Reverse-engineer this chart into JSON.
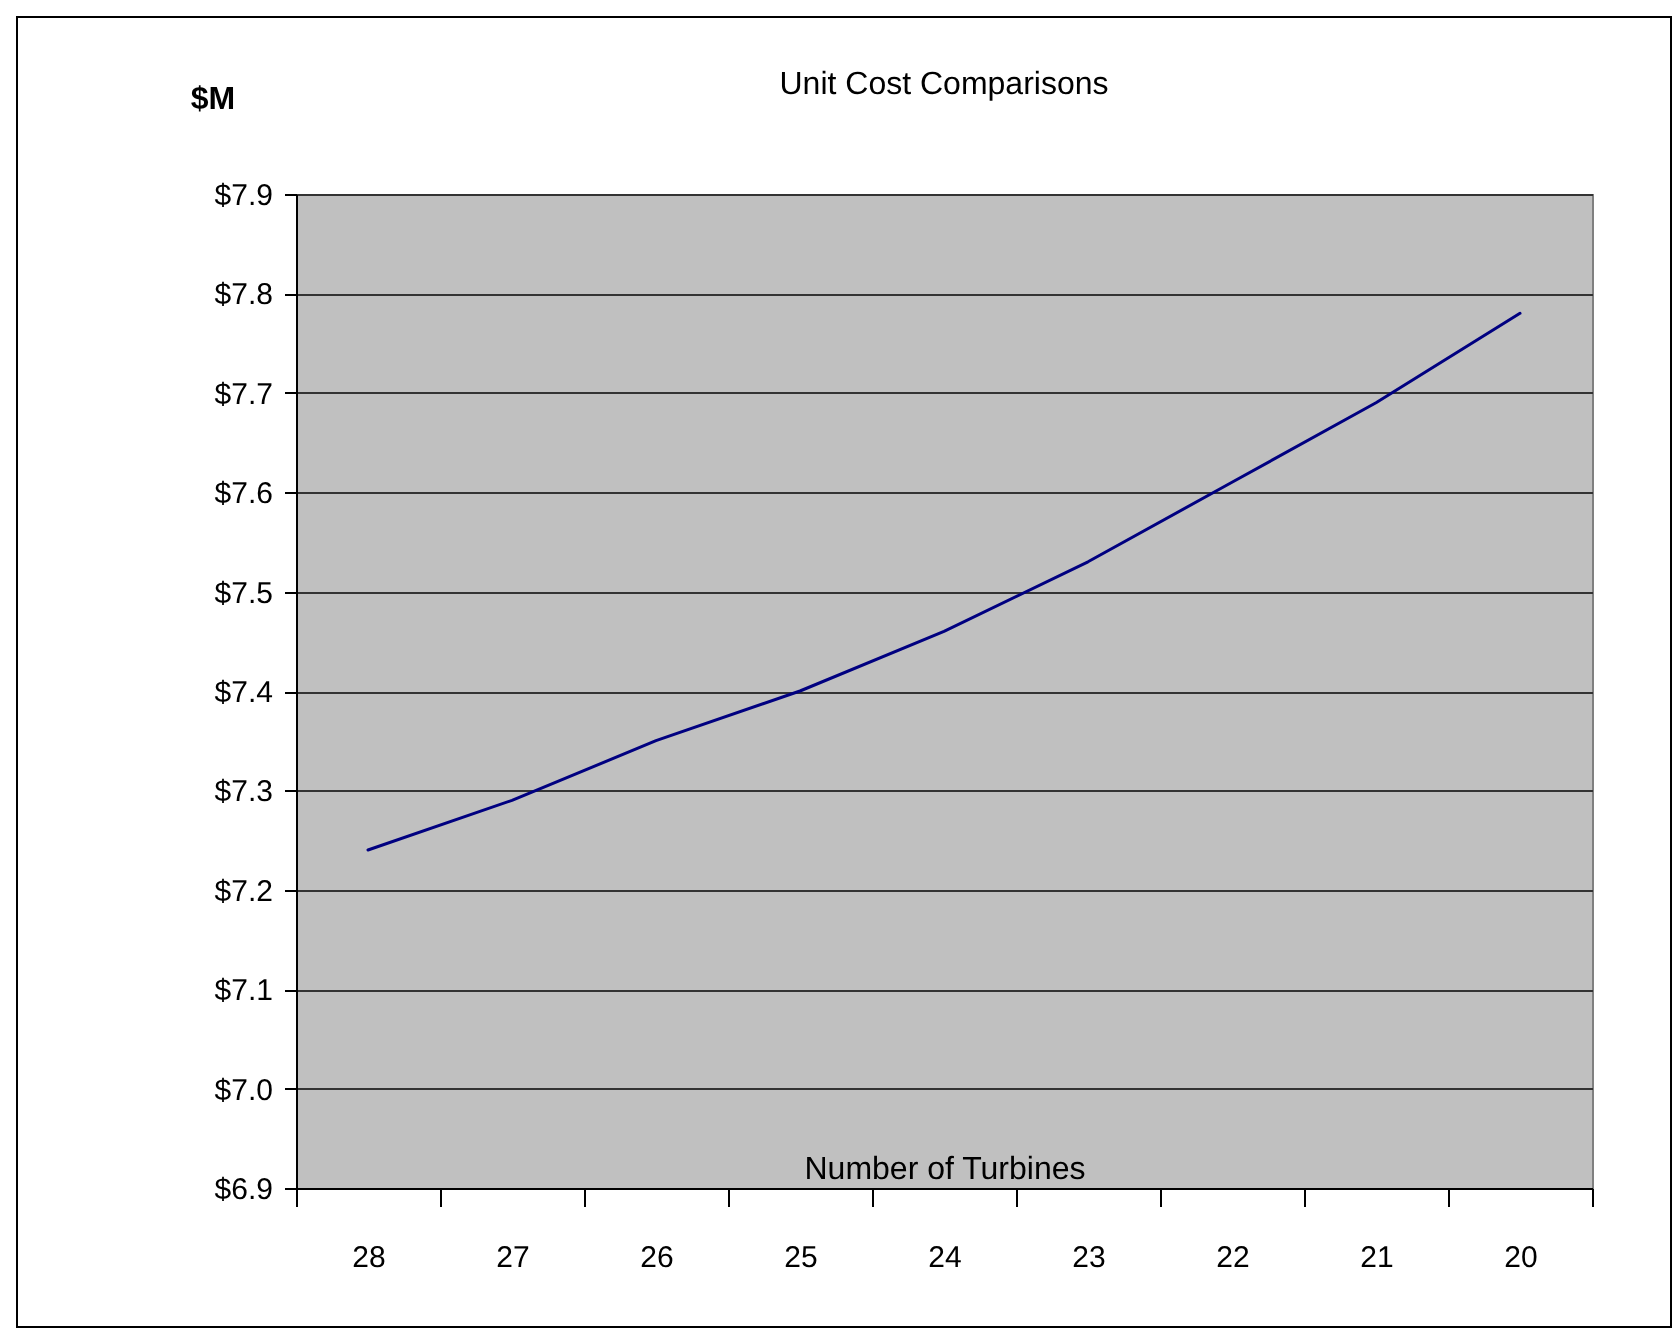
{
  "chart_data": {
    "type": "line",
    "title": "Unit Cost Comparisons",
    "xlabel": "Number of Turbines",
    "ylabel": "$M",
    "categories": [
      "28",
      "27",
      "26",
      "25",
      "24",
      "23",
      "22",
      "21",
      "20"
    ],
    "series": [
      {
        "color": "#000080",
        "values": [
          7.24,
          7.29,
          7.35,
          7.4,
          7.46,
          7.53,
          7.61,
          7.69,
          7.78
        ]
      }
    ],
    "ylim": [
      6.9,
      7.9
    ],
    "yticks": [
      {
        "value": 6.9,
        "label": "$6.9"
      },
      {
        "value": 7.0,
        "label": "$7.0"
      },
      {
        "value": 7.1,
        "label": "$7.1"
      },
      {
        "value": 7.2,
        "label": "$7.2"
      },
      {
        "value": 7.3,
        "label": "$7.3"
      },
      {
        "value": 7.4,
        "label": "$7.4"
      },
      {
        "value": 7.5,
        "label": "$7.5"
      },
      {
        "value": 7.6,
        "label": "$7.6"
      },
      {
        "value": 7.7,
        "label": "$7.7"
      },
      {
        "value": 7.8,
        "label": "$7.8"
      },
      {
        "value": 7.9,
        "label": "$7.9"
      }
    ],
    "grid": "y",
    "marker": "none",
    "line_style": "solid"
  }
}
